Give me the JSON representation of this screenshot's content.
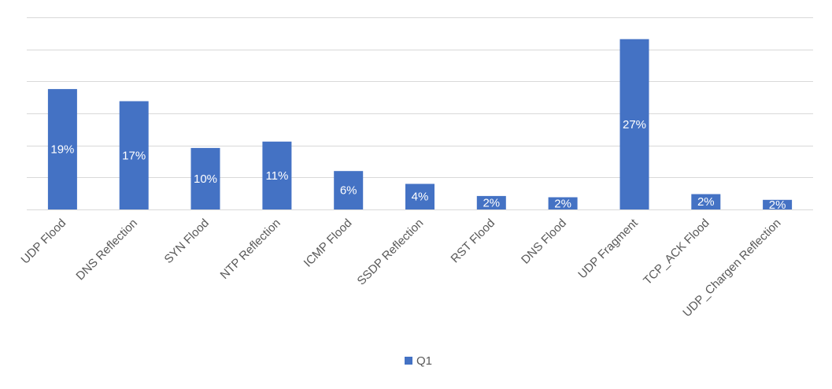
{
  "chart_data": {
    "type": "bar",
    "categories": [
      "UDP Flood",
      "DNS Reflection",
      "SYN Flood",
      "NTP Reflection",
      "ICMP Flood",
      "SSDP Reflection",
      "RST Flood",
      "DNS Flood",
      "UDP Fragment",
      "TCP_ACK Flood",
      "UDP_Chargen Reflection"
    ],
    "series": [
      {
        "name": "Q1",
        "values": [
          18.8,
          16.9,
          9.6,
          10.6,
          6.0,
          4.0,
          2.1,
          1.9,
          26.6,
          2.4,
          1.5
        ],
        "labels": [
          "19%",
          "17%",
          "10%",
          "11%",
          "6%",
          "4%",
          "2%",
          "2%",
          "27%",
          "2%",
          "2%"
        ],
        "color": "#4472c4"
      }
    ],
    "ylim": [
      0,
      30
    ],
    "grid": true,
    "legend_position": "bottom"
  }
}
